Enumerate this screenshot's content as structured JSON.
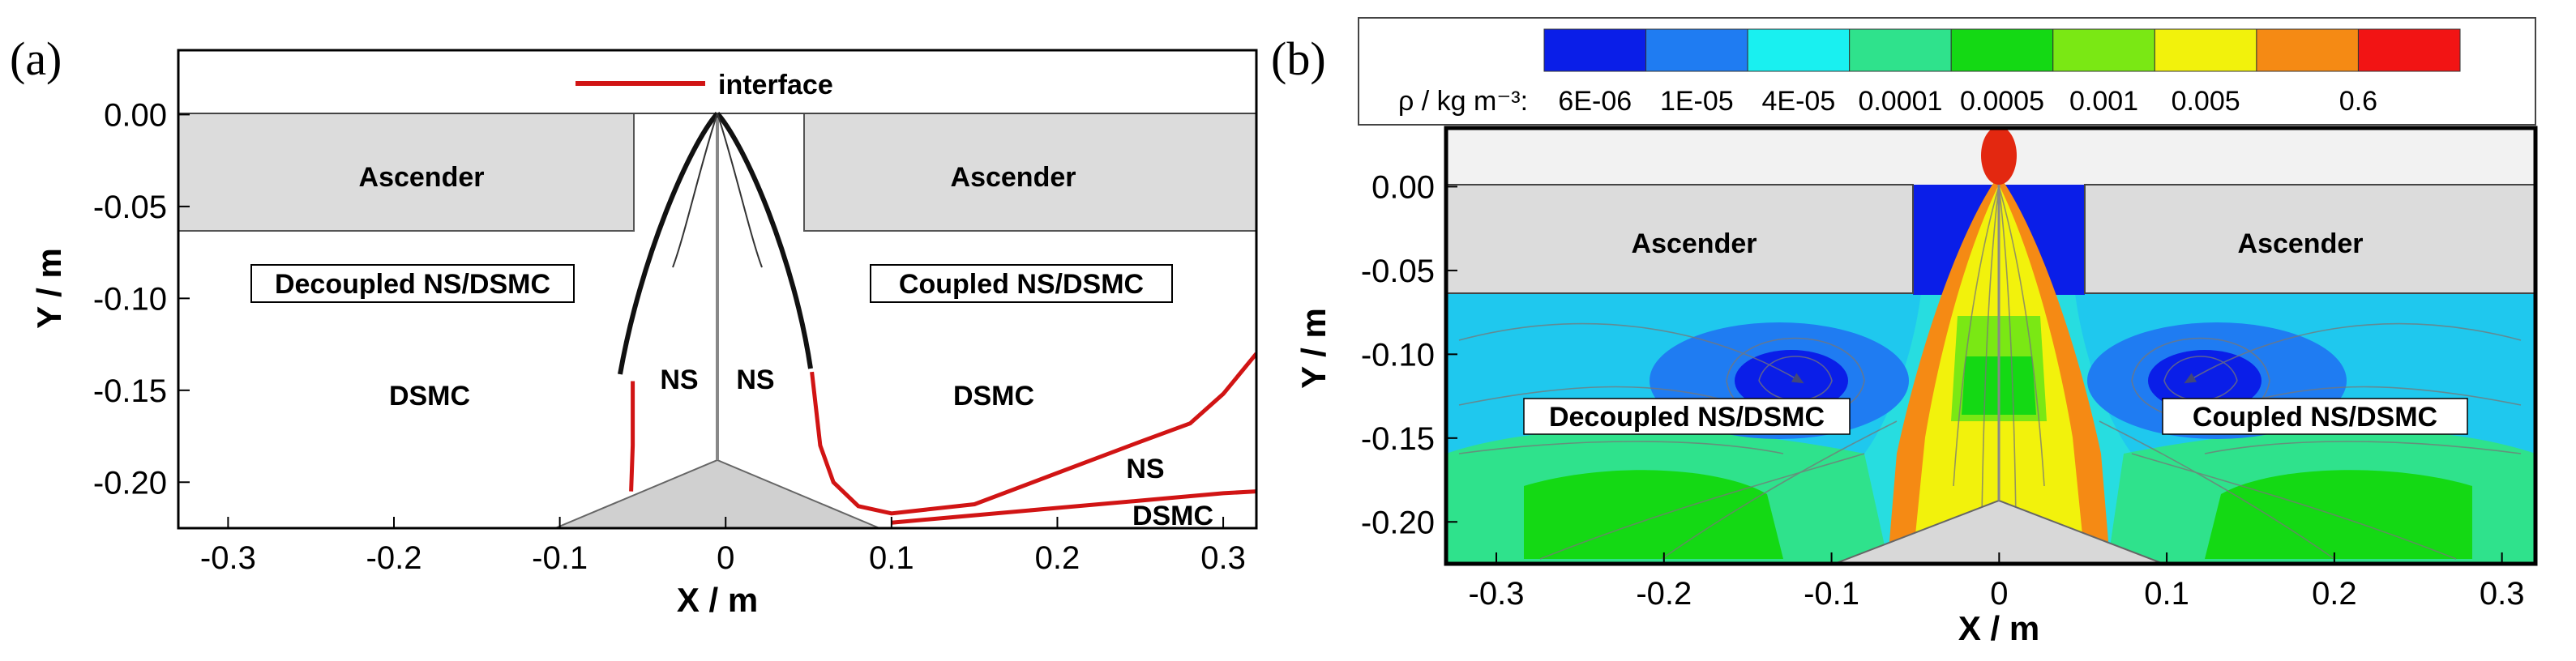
{
  "figure": {
    "panel_a": "(a)",
    "panel_b": "(b)"
  },
  "chart_data": [
    {
      "type": "line",
      "panel": "(a)",
      "xlabel": "X / m",
      "ylabel": "Y / m",
      "xlim": [
        -0.33,
        0.32
      ],
      "ylim": [
        -0.225,
        0.035
      ],
      "xticks": [
        "-0.3",
        "-0.2",
        "-0.1",
        "0",
        "0.1",
        "0.2",
        "0.3"
      ],
      "yticks": [
        "0.00",
        "-0.05",
        "-0.10",
        "-0.15",
        "-0.20"
      ],
      "legend": [
        {
          "label": "interface",
          "color": "#d11414"
        }
      ],
      "labels": {
        "ascender_left": "Ascender",
        "ascender_right": "Ascender",
        "decoupled": "Decoupled NS/DSMC",
        "coupled": "Coupled NS/DSMC",
        "dsmc_left": "DSMC",
        "dsmc_right": "DSMC",
        "ns_left": "NS",
        "ns_right": "NS",
        "ns_far": "NS",
        "dsmc_far": "DSMC"
      },
      "series": [
        {
          "name": "interface (decoupled)",
          "x": [
            -0.056,
            -0.056,
            -0.057
          ],
          "y": [
            -0.145,
            -0.18,
            -0.205
          ]
        },
        {
          "name": "interface (coupled)",
          "x": [
            0.052,
            0.057,
            0.065,
            0.08,
            0.1,
            0.15,
            0.2,
            0.25,
            0.28,
            0.3,
            0.32
          ],
          "y": [
            -0.14,
            -0.18,
            -0.2,
            -0.213,
            -0.217,
            -0.212,
            -0.195,
            -0.178,
            -0.168,
            -0.152,
            -0.13
          ]
        },
        {
          "name": "interface (coupled, lower)",
          "x": [
            0.1,
            0.15,
            0.2,
            0.25,
            0.3,
            0.32
          ],
          "y": [
            -0.222,
            -0.218,
            -0.214,
            -0.21,
            -0.206,
            -0.205
          ]
        },
        {
          "name": "plume boundary",
          "x": [
            -0.058,
            -0.045,
            -0.03,
            -0.015,
            0,
            0.015,
            0.03,
            0.045,
            0.053
          ],
          "y": [
            -0.145,
            -0.1,
            -0.055,
            -0.02,
            0,
            -0.02,
            -0.055,
            -0.1,
            -0.14
          ]
        }
      ]
    },
    {
      "type": "heatmap",
      "panel": "(b)",
      "xlabel": "X / m",
      "ylabel": "Y / m",
      "xlim": [
        -0.33,
        0.32
      ],
      "ylim": [
        -0.225,
        0.035
      ],
      "xticks": [
        "-0.3",
        "-0.2",
        "-0.1",
        "0",
        "0.1",
        "0.2",
        "0.3"
      ],
      "yticks": [
        "0.00",
        "-0.05",
        "-0.10",
        "-0.15",
        "-0.20"
      ],
      "colorbar": {
        "label": "ρ / kg m⁻³:",
        "ticks": [
          "6E-06",
          "1E-05",
          "4E-05",
          "0.0001",
          "0.0005",
          "0.001",
          "0.005",
          "0.6"
        ],
        "colors": [
          "#0a1ee8",
          "#1f7cf2",
          "#19f0f0",
          "#2fe28c",
          "#14d914",
          "#7ae814",
          "#f2f20c",
          "#f58a14",
          "#f21414"
        ]
      },
      "labels": {
        "ascender_left": "Ascender",
        "ascender_right": "Ascender",
        "decoupled": "Decoupled NS/DSMC",
        "coupled": "Coupled NS/DSMC"
      }
    }
  ]
}
